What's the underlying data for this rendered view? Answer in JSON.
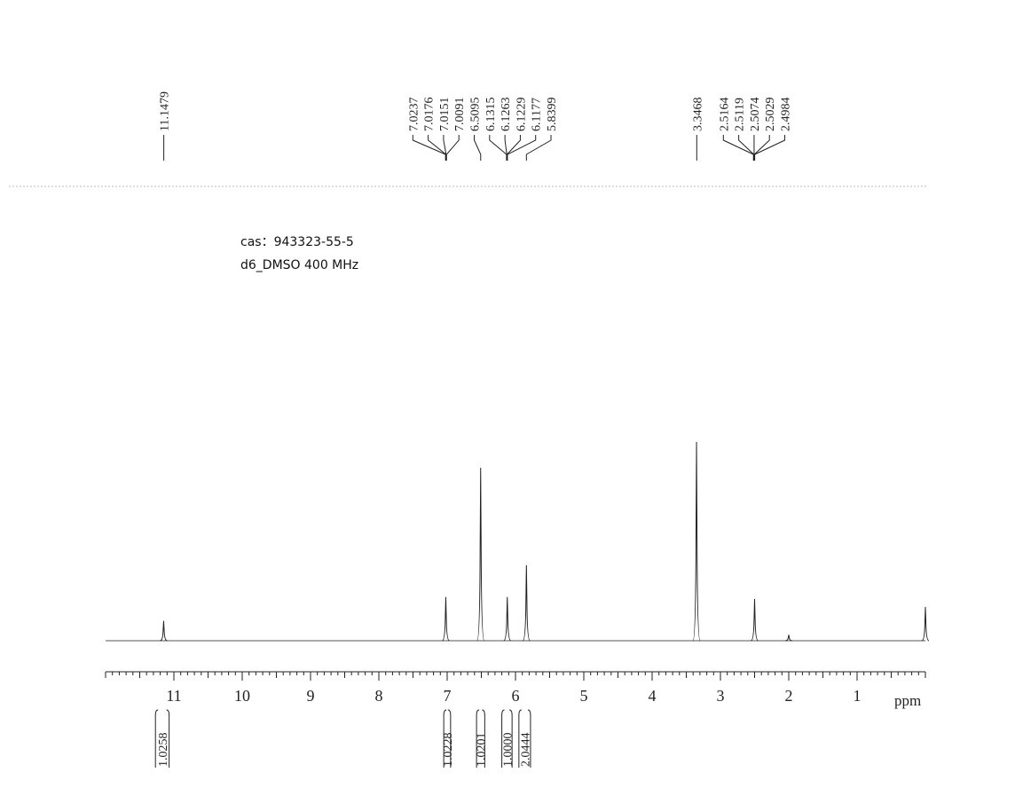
{
  "chart_data": {
    "type": "nmr",
    "annotations": [
      "cas：943323-55-5",
      "d6_DMSO   400   MHz"
    ],
    "x_label": "ppm",
    "xlim": [
      12,
      0
    ],
    "xticks": [
      11,
      10,
      9,
      8,
      7,
      6,
      5,
      4,
      3,
      2,
      1
    ],
    "ylim": [
      0,
      100
    ],
    "peak_labels": [
      11.1479,
      7.0237,
      7.0176,
      7.0151,
      7.0091,
      6.5095,
      6.1315,
      6.1263,
      6.1229,
      6.1177,
      5.8399,
      3.3468,
      2.5164,
      2.5119,
      2.5074,
      2.5029,
      2.4984
    ],
    "signals": [
      {
        "shift": 11.15,
        "height": 10
      },
      {
        "shift": 7.02,
        "height": 22
      },
      {
        "shift": 6.51,
        "height": 87
      },
      {
        "shift": 6.12,
        "height": 22
      },
      {
        "shift": 5.84,
        "height": 38
      },
      {
        "shift": 3.35,
        "height": 100
      },
      {
        "shift": 2.5,
        "height": 21
      },
      {
        "shift": 2.0,
        "height": 3
      },
      {
        "shift": 0.0,
        "height": 17
      }
    ],
    "integrals": [
      {
        "from": 11.27,
        "to": 11.07,
        "value": 1.0258
      },
      {
        "from": 7.05,
        "to": 6.95,
        "value": 1.0228
      },
      {
        "from": 6.57,
        "to": 6.45,
        "value": 1.0201
      },
      {
        "from": 6.2,
        "to": 6.05,
        "value": {
          "value": 1,
          "label": "1.0000"
        }
      },
      {
        "from": 5.95,
        "to": 5.78,
        "value": 2.0444
      }
    ]
  }
}
